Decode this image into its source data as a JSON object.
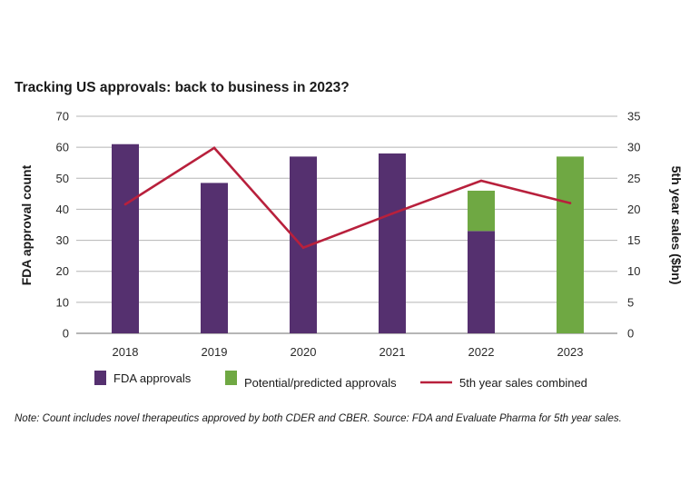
{
  "chart_data": {
    "type": "bar",
    "title": "Tracking US approvals: back to business in 2023?",
    "categories": [
      "2018",
      "2019",
      "2020",
      "2021",
      "2022",
      "2023"
    ],
    "series": [
      {
        "name": "FDA approvals",
        "kind": "bar",
        "axis": "left",
        "color": "#55306f",
        "values": [
          61,
          48.5,
          57,
          58,
          33,
          0
        ]
      },
      {
        "name": "Potential/predicted approvals",
        "kind": "bar",
        "axis": "left",
        "color": "#6fa843",
        "values": [
          0,
          0,
          0,
          0,
          13,
          57
        ]
      },
      {
        "name": "5th year sales combined",
        "kind": "line",
        "axis": "right",
        "color": "#b8203c",
        "values": [
          20.8,
          29.9,
          13.8,
          19.3,
          24.6,
          21
        ]
      }
    ],
    "ylabel": "FDA approval count",
    "y2label": "5th year sales ($bn)",
    "ylim": [
      0,
      70
    ],
    "y2lim": [
      0,
      35
    ],
    "yticks": [
      "70",
      "60",
      "50",
      "40",
      "30",
      "20",
      "10",
      "0"
    ],
    "y2ticks": [
      "35",
      "30",
      "25",
      "20",
      "15",
      "10",
      "5",
      "0"
    ],
    "legend": [
      "FDA approvals",
      "Potential/predicted approvals",
      "5th year sales combined"
    ],
    "grid": true,
    "note": "Note: Count includes novel therapeutics approved by both CDER and CBER. Source: FDA and Evaluate Pharma for 5th year sales."
  }
}
